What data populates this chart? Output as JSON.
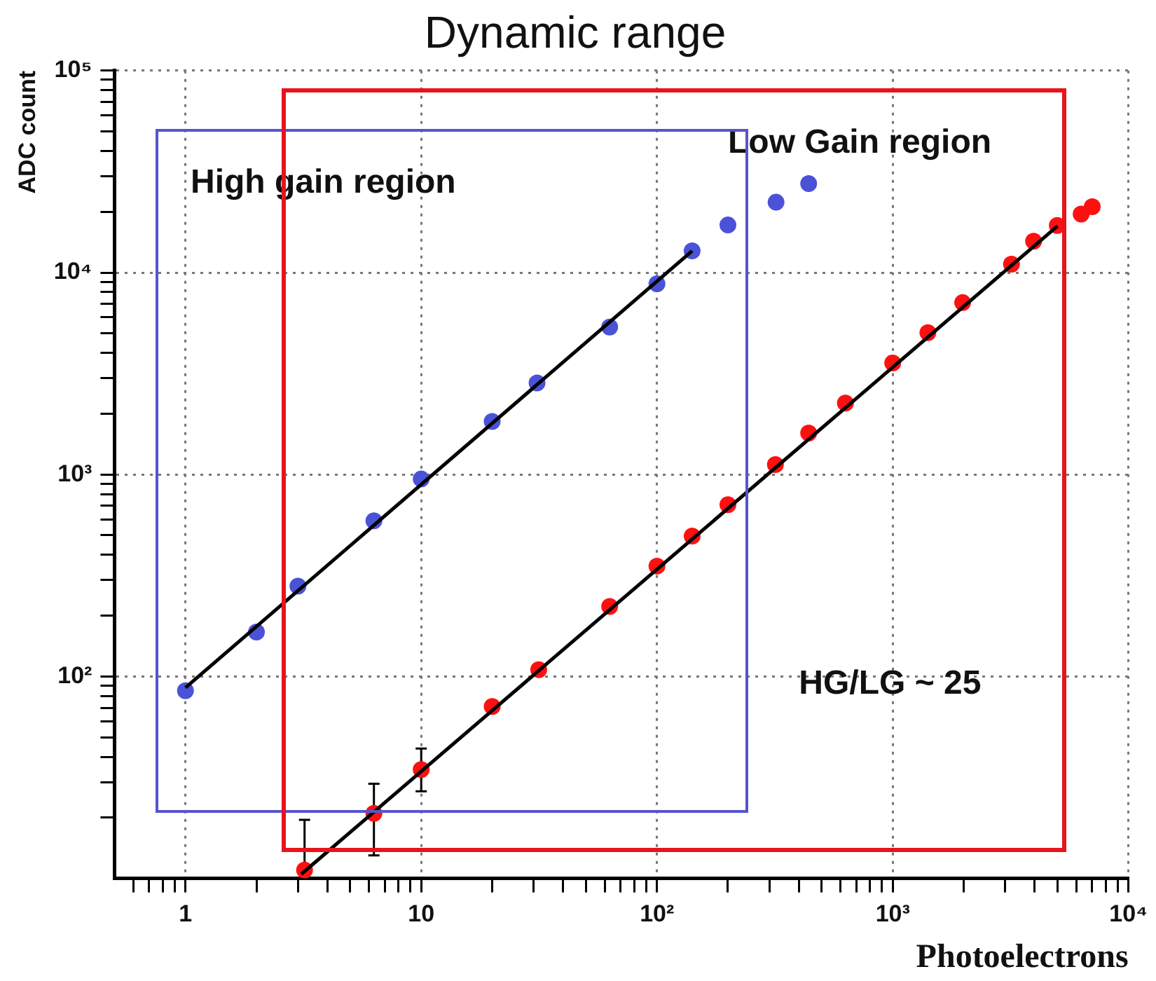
{
  "chart_data": {
    "type": "scatter",
    "title": "Dynamic range",
    "xlabel": "Photoelectrons",
    "ylabel": "ADC count",
    "log": "xy",
    "grid": true,
    "marker": "circle",
    "xlim": [
      0.5,
      10000
    ],
    "xticks": [
      {
        "value": 0.6,
        "label": null
      },
      {
        "value": 0.7,
        "label": null
      },
      {
        "value": 0.8,
        "label": null
      },
      {
        "value": 0.9,
        "label": null
      },
      1,
      {
        "value": 2,
        "label": null
      },
      {
        "value": 3,
        "label": null
      },
      {
        "value": 4,
        "label": null
      },
      {
        "value": 5,
        "label": null
      },
      {
        "value": 6,
        "label": null
      },
      {
        "value": 7,
        "label": null
      },
      {
        "value": 8,
        "label": null
      },
      {
        "value": 9,
        "label": null
      },
      10,
      {
        "value": 20,
        "label": null
      },
      {
        "value": 30,
        "label": null
      },
      {
        "value": 40,
        "label": null
      },
      {
        "value": 50,
        "label": null
      },
      {
        "value": 60,
        "label": null
      },
      {
        "value": 70,
        "label": null
      },
      {
        "value": 80,
        "label": null
      },
      {
        "value": 90,
        "label": null
      },
      {
        "value": 100,
        "label": "10²"
      },
      {
        "value": 200,
        "label": null
      },
      {
        "value": 300,
        "label": null
      },
      {
        "value": 400,
        "label": null
      },
      {
        "value": 500,
        "label": null
      },
      {
        "value": 600,
        "label": null
      },
      {
        "value": 700,
        "label": null
      },
      {
        "value": 800,
        "label": null
      },
      {
        "value": 900,
        "label": null
      },
      {
        "value": 1000,
        "label": "10³"
      },
      {
        "value": 2000,
        "label": null
      },
      {
        "value": 3000,
        "label": null
      },
      {
        "value": 4000,
        "label": null
      },
      {
        "value": 5000,
        "label": null
      },
      {
        "value": 6000,
        "label": null
      },
      {
        "value": 7000,
        "label": null
      },
      {
        "value": 8000,
        "label": null
      },
      {
        "value": 9000,
        "label": null
      },
      {
        "value": 10000,
        "label": "10⁴"
      }
    ],
    "ylim": [
      10,
      100000
    ],
    "yticks": [
      {
        "value": 20,
        "label": null
      },
      {
        "value": 30,
        "label": null
      },
      {
        "value": 40,
        "label": null
      },
      {
        "value": 50,
        "label": null
      },
      {
        "value": 60,
        "label": null
      },
      {
        "value": 70,
        "label": null
      },
      {
        "value": 80,
        "label": null
      },
      {
        "value": 90,
        "label": null
      },
      {
        "value": 100,
        "label": "10²"
      },
      {
        "value": 200,
        "label": null
      },
      {
        "value": 300,
        "label": null
      },
      {
        "value": 400,
        "label": null
      },
      {
        "value": 500,
        "label": null
      },
      {
        "value": 600,
        "label": null
      },
      {
        "value": 700,
        "label": null
      },
      {
        "value": 800,
        "label": null
      },
      {
        "value": 900,
        "label": null
      },
      {
        "value": 1000,
        "label": "10³"
      },
      {
        "value": 2000,
        "label": null
      },
      {
        "value": 3000,
        "label": null
      },
      {
        "value": 4000,
        "label": null
      },
      {
        "value": 5000,
        "label": null
      },
      {
        "value": 6000,
        "label": null
      },
      {
        "value": 7000,
        "label": null
      },
      {
        "value": 8000,
        "label": null
      },
      {
        "value": 9000,
        "label": null
      },
      {
        "value": 10000,
        "label": "10⁴"
      },
      {
        "value": 20000,
        "label": null
      },
      {
        "value": 30000,
        "label": null
      },
      {
        "value": 40000,
        "label": null
      },
      {
        "value": 50000,
        "label": null
      },
      {
        "value": 60000,
        "label": null
      },
      {
        "value": 70000,
        "label": null
      },
      {
        "value": 80000,
        "label": null
      },
      {
        "value": 90000,
        "label": null
      },
      {
        "value": 100000,
        "label": "10⁵"
      }
    ],
    "series": [
      {
        "type": "line",
        "marker": "none",
        "color": "#000000",
        "x": [
          1,
          141
        ],
        "values": [
          88,
          12800
        ]
      },
      {
        "type": "line",
        "marker": "none",
        "color": "#000000",
        "x": [
          3.1,
          5000
        ],
        "values": [
          10.5,
          17000
        ]
      },
      {
        "color": "#4a52d8",
        "x": [
          1,
          2,
          3,
          6.3,
          10,
          20,
          31,
          63,
          100,
          141,
          200,
          320,
          440
        ],
        "values": [
          85,
          166,
          280,
          590,
          950,
          1830,
          2840,
          5370,
          8800,
          12800,
          17200,
          22300,
          27600
        ]
      },
      {
        "color": "#ff1010",
        "x": [
          3.2,
          6.3,
          10,
          20,
          31.5,
          63,
          100,
          141,
          200,
          318,
          440,
          630,
          1000,
          1410,
          1980,
          3190,
          3960,
          4990,
          6300,
          7020
        ],
        "values": [
          11,
          21,
          34.6,
          71,
          108,
          222,
          352,
          496,
          709,
          1120,
          1605,
          2260,
          3570,
          5040,
          7100,
          11000,
          14300,
          17100,
          19500,
          21200
        ],
        "errors": [
          [
            10,
            19.5
          ],
          [
            13,
            29.4
          ],
          [
            27,
            44
          ],
          null,
          null,
          null,
          null,
          null,
          null,
          null,
          null,
          null,
          null,
          null,
          null,
          null,
          null,
          null,
          null,
          null
        ]
      }
    ],
    "annotations": [
      "High gain region",
      "Low Gain region",
      "HG/LG ~ 25"
    ]
  }
}
